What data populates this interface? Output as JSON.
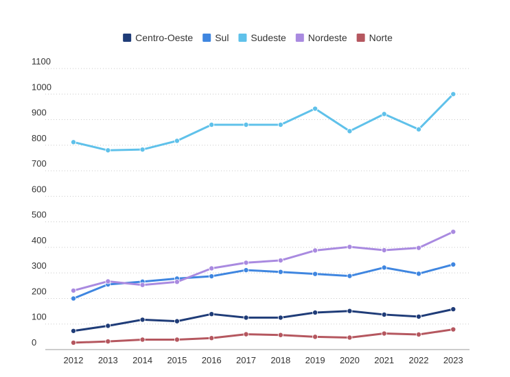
{
  "chart_data": {
    "type": "line",
    "title": "",
    "xlabel": "",
    "ylabel": "",
    "x": [
      "2012",
      "2013",
      "2014",
      "2015",
      "2016",
      "2017",
      "2018",
      "2019",
      "2020",
      "2021",
      "2022",
      "2023"
    ],
    "yticks": [
      "0",
      "100",
      "200",
      "300",
      "400",
      "500",
      "600",
      "700",
      "800",
      "900",
      "1000",
      "1100"
    ],
    "ylim": [
      0,
      1100
    ],
    "grid": true,
    "legend_position": "top-center",
    "series": [
      {
        "name": "Centro-Oeste",
        "color": "#1f3c78",
        "values": [
          73,
          93,
          117,
          111,
          139,
          125,
          125,
          145,
          151,
          137,
          129,
          158
        ]
      },
      {
        "name": "Sul",
        "color": "#3f86e0",
        "values": [
          200,
          255,
          266,
          278,
          287,
          311,
          304,
          296,
          288,
          321,
          297,
          333
        ]
      },
      {
        "name": "Sudeste",
        "color": "#5fc1ea",
        "values": [
          812,
          780,
          783,
          817,
          880,
          880,
          880,
          943,
          855,
          922,
          862,
          1000
        ]
      },
      {
        "name": "Nordeste",
        "color": "#a98ae0",
        "values": [
          231,
          267,
          253,
          265,
          318,
          340,
          349,
          388,
          402,
          389,
          398,
          461
        ]
      },
      {
        "name": "Norte",
        "color": "#b5575f",
        "values": [
          27,
          32,
          39,
          39,
          45,
          60,
          57,
          50,
          47,
          63,
          59,
          79
        ]
      }
    ]
  }
}
